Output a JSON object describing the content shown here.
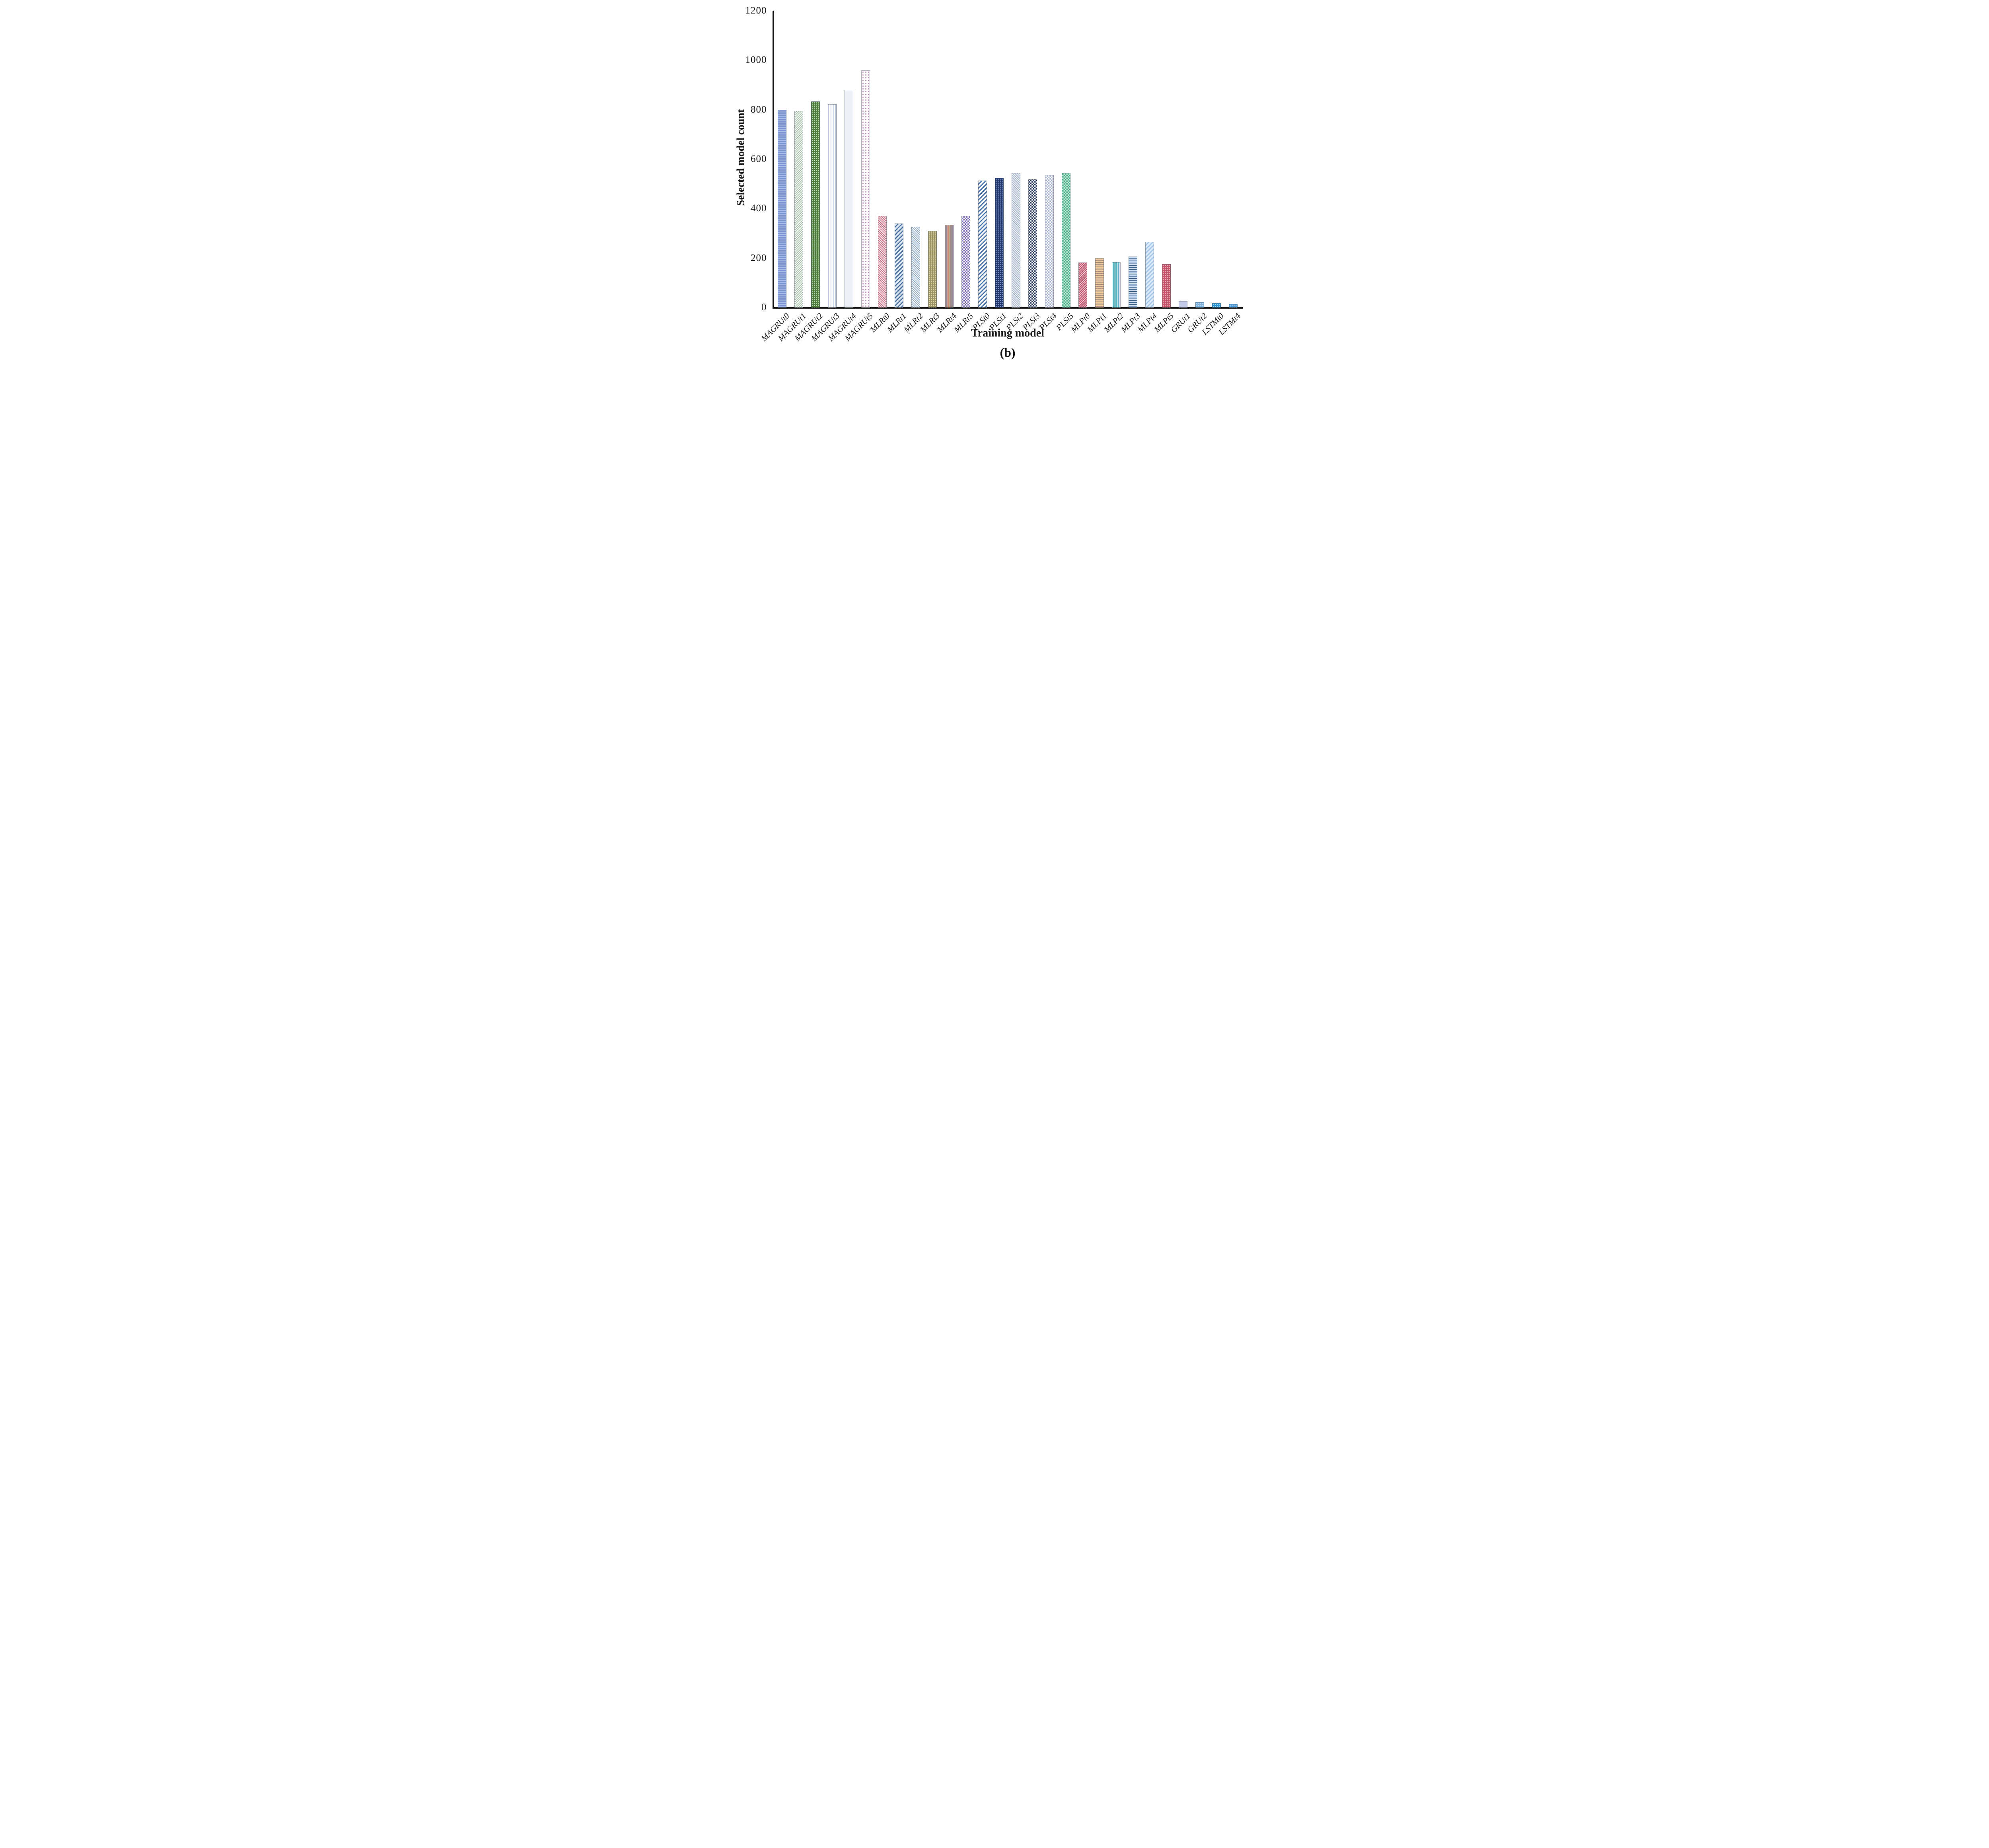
{
  "figure": {
    "caption": "(b)"
  },
  "chart_data": {
    "type": "bar",
    "title": "",
    "xlabel": "Training model",
    "ylabel": "Selected model count",
    "ylim": [
      0,
      1200
    ],
    "yticks": [
      0,
      200,
      400,
      600,
      800,
      1000,
      1200
    ],
    "grid": false,
    "legend": false,
    "categories": [
      "MAGRUt0",
      "MAGRUt1",
      "MAGRUt2",
      "MAGRUt3",
      "MAGRUt4",
      "MAGRUt5",
      "MLRt0",
      "MLRt1",
      "MLRt2",
      "MLRt3",
      "MLRt4",
      "MLRt5",
      "PLSt0",
      "PLSt1",
      "PLSt2",
      "PLSt3",
      "PLSt4",
      "PLSt5",
      "MLPt0",
      "MLPt1",
      "MLPt2",
      "MLPt3",
      "MLPt4",
      "MLPt5",
      "GRUt1",
      "GRUt2",
      "LSTMt0",
      "LSTMt4"
    ],
    "values": [
      800,
      795,
      833,
      822,
      880,
      958,
      370,
      340,
      327,
      310,
      335,
      370,
      513,
      524,
      543,
      518,
      535,
      543,
      181,
      200,
      184,
      206,
      265,
      176,
      25,
      21,
      18,
      15
    ],
    "bars": [
      {
        "label": "MAGRUt0",
        "value": 800,
        "pattern": "hstripes",
        "base": "#7b93cf",
        "accent": "#a9bde8"
      },
      {
        "label": "MAGRUt1",
        "value": 795,
        "pattern": "diag135-fine",
        "base": "#f2f7f0",
        "accent": "#9db8a8"
      },
      {
        "label": "MAGRUt2",
        "value": 833,
        "pattern": "dots",
        "base": "#4e7e3c",
        "accent": "#c9dfc0"
      },
      {
        "label": "MAGRUt3",
        "value": 822,
        "pattern": "vstripes",
        "base": "#ffffff",
        "accent": "#b3c3de"
      },
      {
        "label": "MAGRUt4",
        "value": 880,
        "pattern": "brick",
        "base": "#edf0f5",
        "accent": "#8fa5bf"
      },
      {
        "label": "MAGRUt5",
        "value": 958,
        "pattern": "dots-sparse",
        "base": "#fdfbfd",
        "accent": "#b98fb2"
      },
      {
        "label": "MLRt0",
        "value": 370,
        "pattern": "diag45-fine",
        "base": "#f6dde2",
        "accent": "#c06880"
      },
      {
        "label": "MLRt1",
        "value": 340,
        "pattern": "diag135",
        "base": "#dfe9f6",
        "accent": "#51749e"
      },
      {
        "label": "MLRt2",
        "value": 327,
        "pattern": "diag45-fine",
        "base": "#f0f5fa",
        "accent": "#86a4c2"
      },
      {
        "label": "MLRt3",
        "value": 310,
        "pattern": "dots",
        "base": "#9b9569",
        "accent": "#efe7a6"
      },
      {
        "label": "MLRt4",
        "value": 335,
        "pattern": "vstripes3",
        "base": "#8d8d95",
        "accent": "#d08878",
        "accent2": "#c9b58a"
      },
      {
        "label": "MLRt5",
        "value": 370,
        "pattern": "checker",
        "base": "#ffffff",
        "accent": "#7a68b4"
      },
      {
        "label": "PLSt0",
        "value": 513,
        "pattern": "diag135",
        "base": "#ffffff",
        "accent": "#4c76ae"
      },
      {
        "label": "PLSt1",
        "value": 524,
        "pattern": "dots",
        "base": "#20386e",
        "accent": "#93a9d4"
      },
      {
        "label": "PLSt2",
        "value": 543,
        "pattern": "diag45-fine",
        "base": "#e9edf3",
        "accent": "#9fadc1"
      },
      {
        "label": "PLSt3",
        "value": 518,
        "pattern": "checker",
        "base": "#f2f4f8",
        "accent": "#2c3c60"
      },
      {
        "label": "PLSt4",
        "value": 535,
        "pattern": "checker",
        "base": "#ffffff",
        "accent": "#aab6d2"
      },
      {
        "label": "PLSt5",
        "value": 543,
        "pattern": "checker",
        "base": "#4fb18c",
        "accent": "#bce6d2"
      },
      {
        "label": "MLPt0",
        "value": 181,
        "pattern": "diag135-fine",
        "base": "#c25670",
        "accent": "#f2d4dc"
      },
      {
        "label": "MLPt1",
        "value": 200,
        "pattern": "hstripes",
        "base": "#eeca9f",
        "accent": "#a48b7e"
      },
      {
        "label": "MLPt2",
        "value": 184,
        "pattern": "vstripes",
        "base": "#57b6c4",
        "accent": "#eafafa"
      },
      {
        "label": "MLPt3",
        "value": 206,
        "pattern": "hstripes",
        "base": "#cfdff2",
        "accent": "#3f5f8f"
      },
      {
        "label": "MLPt4",
        "value": 265,
        "pattern": "diag135",
        "base": "#dcebf9",
        "accent": "#a6c6e8"
      },
      {
        "label": "MLPt5",
        "value": 176,
        "pattern": "dots",
        "base": "#c2556a",
        "accent": "#eab2bc"
      },
      {
        "label": "GRUt1",
        "value": 25,
        "pattern": "solid",
        "base": "#c3cbe9",
        "accent": "#c3cbe9"
      },
      {
        "label": "GRUt2",
        "value": 21,
        "pattern": "dots",
        "base": "#7db2df",
        "accent": "#cfe6f6"
      },
      {
        "label": "LSTMt0",
        "value": 18,
        "pattern": "dots",
        "base": "#2e95d5",
        "accent": "#9fd4f0"
      },
      {
        "label": "LSTMt4",
        "value": 15,
        "pattern": "dots",
        "base": "#4a95d2",
        "accent": "#a6d2ef"
      }
    ]
  }
}
